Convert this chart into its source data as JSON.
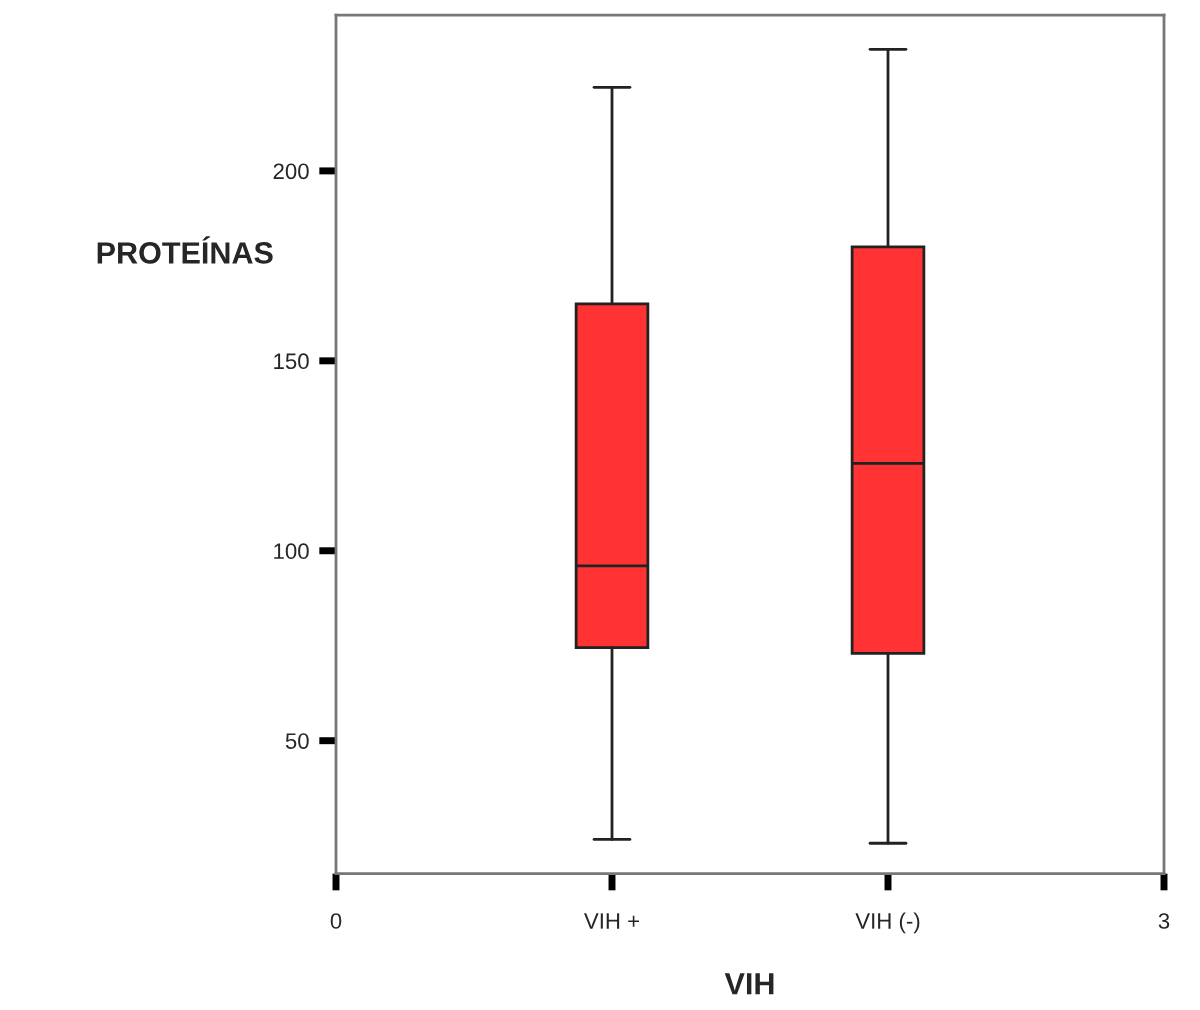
{
  "chart_data": {
    "type": "box",
    "xlabel": "VIH",
    "ylabel": "PROTEÍNAS",
    "x": [
      1,
      2
    ],
    "boxes": [
      {
        "low": 24,
        "q1": 74.5,
        "median": 96,
        "q3": 165,
        "high": 222
      },
      {
        "low": 23,
        "q1": 73,
        "median": 123,
        "q3": 180,
        "high": 232
      }
    ],
    "color": "#ff3333",
    "xlim": [
      0,
      3
    ],
    "xticks": [
      0,
      {
        "value": 1,
        "label": "VIH +"
      },
      {
        "value": 2,
        "label": "VIH (-)"
      },
      3
    ],
    "ylim": [
      15,
      241
    ],
    "yticks": [
      50,
      100,
      150,
      200
    ],
    "grid": false
  }
}
